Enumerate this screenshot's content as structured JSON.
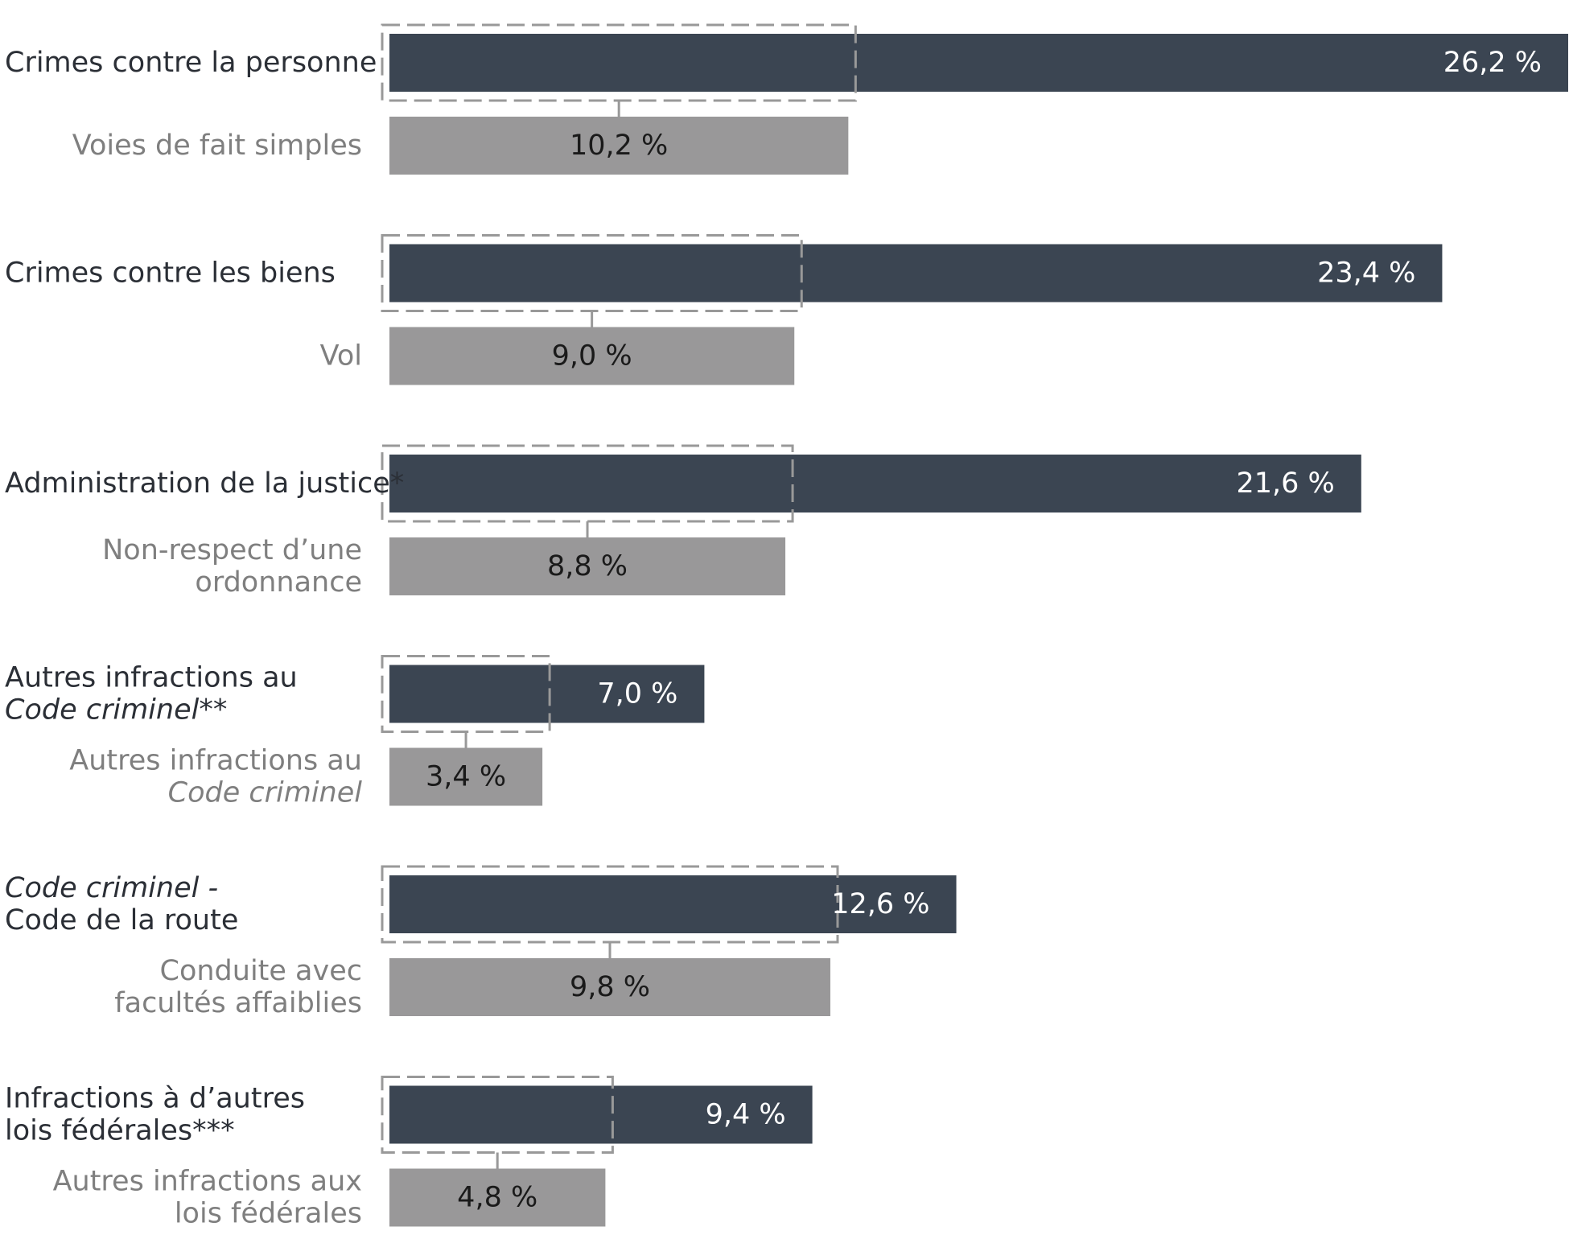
{
  "chart_data": {
    "type": "bar",
    "orientation": "horizontal",
    "xlim": [
      0,
      26.2
    ],
    "colors": {
      "main_bar": "#3b4552",
      "sub_bar": "#999899",
      "callout": "#999999",
      "main_label": "#2b2f36",
      "sub_label": "#7f7f7f"
    },
    "groups": [
      {
        "label_lines": [
          {
            "text": "Crimes contre la personne",
            "italic": false
          }
        ],
        "value": 26.2,
        "value_label": "26,2 %",
        "sub": {
          "label_lines": [
            {
              "text": "Voies de fait simples",
              "italic": false
            }
          ],
          "value": 10.2,
          "value_label": "10,2 %"
        }
      },
      {
        "label_lines": [
          {
            "text": "Crimes contre les biens",
            "italic": false
          }
        ],
        "value": 23.4,
        "value_label": "23,4 %",
        "sub": {
          "label_lines": [
            {
              "text": "Vol",
              "italic": false
            }
          ],
          "value": 9.0,
          "value_label": "9,0 %"
        }
      },
      {
        "label_lines": [
          {
            "text": "Administration de la justice*",
            "italic": false
          }
        ],
        "value": 21.6,
        "value_label": "21,6 %",
        "sub": {
          "label_lines": [
            {
              "text": "Non-respect d’une",
              "italic": false
            },
            {
              "text": "ordonnance",
              "italic": false
            }
          ],
          "value": 8.8,
          "value_label": "8,8 %"
        }
      },
      {
        "label_lines": [
          {
            "text": "Autres infractions au",
            "italic": false
          },
          {
            "text": "Code criminel**",
            "italic": true
          }
        ],
        "value": 7.0,
        "value_label": "7,0 %",
        "sub": {
          "label_lines": [
            {
              "text": "Autres infractions au",
              "italic": false
            },
            {
              "text": "Code criminel",
              "italic": true
            }
          ],
          "value": 3.4,
          "value_label": "3,4 %"
        }
      },
      {
        "label_lines": [
          {
            "text": "Code criminel -",
            "italic": true
          },
          {
            "text": "Code de la route",
            "italic": false
          }
        ],
        "value": 12.6,
        "value_label": "12,6 %",
        "sub": {
          "label_lines": [
            {
              "text": "Conduite avec",
              "italic": false
            },
            {
              "text": "facultés affaiblies",
              "italic": false
            }
          ],
          "value": 9.8,
          "value_label": "9,8 %"
        }
      },
      {
        "label_lines": [
          {
            "text": "Infractions à d’autres",
            "italic": false
          },
          {
            "text": "lois fédérales***",
            "italic": false
          }
        ],
        "value": 9.4,
        "value_label": "9,4 %",
        "sub": {
          "label_lines": [
            {
              "text": "Autres infractions aux",
              "italic": false
            },
            {
              "text": "lois fédérales",
              "italic": false
            }
          ],
          "value": 4.8,
          "value_label": "4,8 %"
        }
      }
    ]
  }
}
